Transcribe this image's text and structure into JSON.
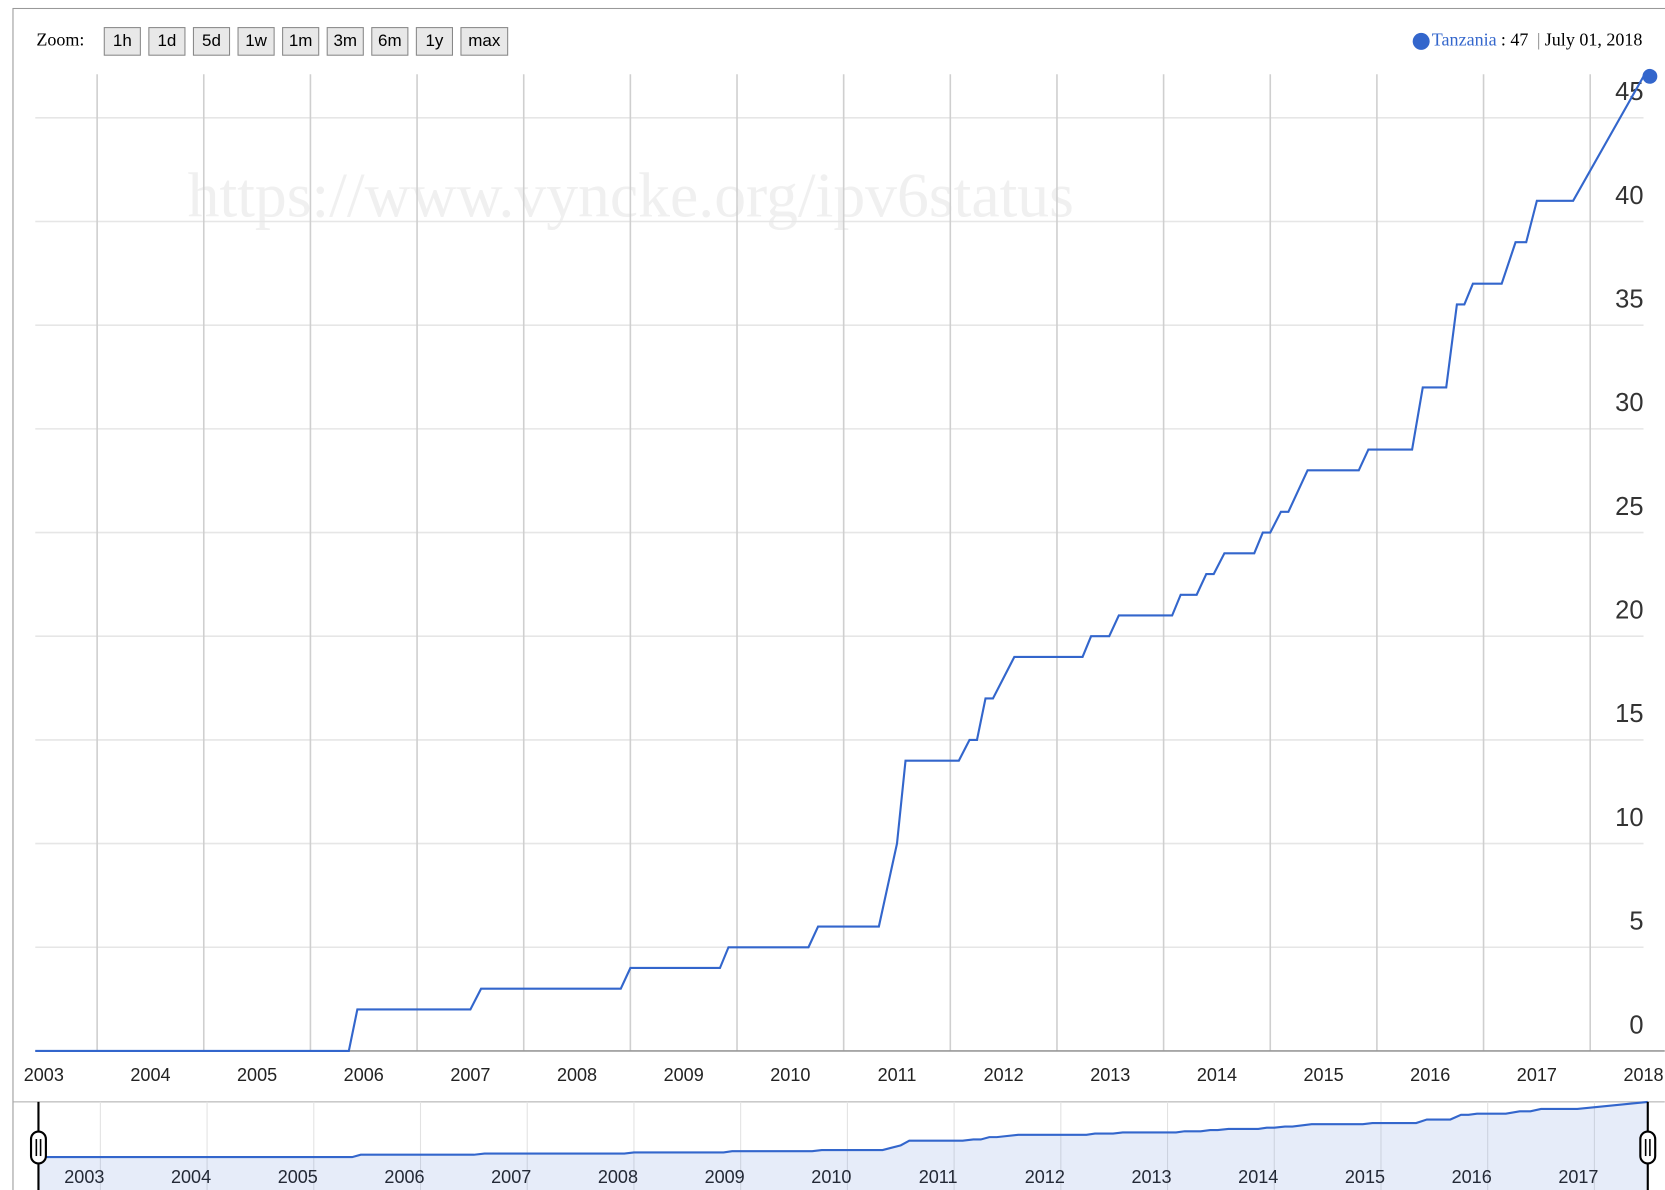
{
  "chart_data": {
    "type": "line",
    "zoom_label": "Zoom:",
    "zoom_buttons": [
      "1h",
      "1d",
      "5d",
      "1w",
      "1m",
      "3m",
      "6m",
      "1y",
      "max"
    ],
    "watermark": "https://www.vyncke.org/ipv6status",
    "legend": {
      "date": "July 01, 2018",
      "value_label": ": 47"
    },
    "x": [
      2003.42,
      2006.36,
      2006.44,
      2007.5,
      2007.6,
      2008.91,
      2009.0,
      2009.84,
      2009.92,
      2010.67,
      2010.76,
      2011.33,
      2011.5,
      2011.58,
      2012.08,
      2012.18,
      2012.25,
      2012.33,
      2012.4,
      2012.6,
      2013.24,
      2013.32,
      2013.49,
      2013.58,
      2014.08,
      2014.16,
      2014.31,
      2014.4,
      2014.47,
      2014.57,
      2014.85,
      2014.93,
      2015.0,
      2015.1,
      2015.17,
      2015.35,
      2015.83,
      2015.92,
      2016.33,
      2016.43,
      2016.65,
      2016.75,
      2016.82,
      2016.9,
      2017.17,
      2017.3,
      2017.4,
      2017.5,
      2017.84,
      2018.5
    ],
    "series": [
      {
        "name": "Tanzania",
        "color": "#3366cc",
        "values": [
          0,
          0,
          2,
          2,
          3,
          3,
          4,
          4,
          5,
          5,
          6,
          6,
          10,
          14,
          14,
          15,
          15,
          17,
          17,
          19,
          19,
          20,
          20,
          21,
          21,
          22,
          22,
          23,
          23,
          24,
          24,
          25,
          25,
          26,
          26,
          28,
          28,
          29,
          29,
          32,
          32,
          36,
          36,
          37,
          37,
          39,
          39,
          41,
          41,
          47
        ]
      }
    ],
    "xlim": [
      2003.42,
      2018.5
    ],
    "xticks": [
      2003,
      2004,
      2005,
      2006,
      2007,
      2008,
      2009,
      2010,
      2011,
      2012,
      2013,
      2014,
      2015,
      2016,
      2017,
      2018
    ],
    "navigator_xticks": [
      2003,
      2004,
      2005,
      2006,
      2007,
      2008,
      2009,
      2010,
      2011,
      2012,
      2013,
      2014,
      2015,
      2016,
      2017
    ],
    "ylim": [
      0,
      47
    ],
    "yticks": [
      0,
      5,
      10,
      15,
      20,
      25,
      30,
      35,
      40,
      45
    ],
    "grid": true
  }
}
